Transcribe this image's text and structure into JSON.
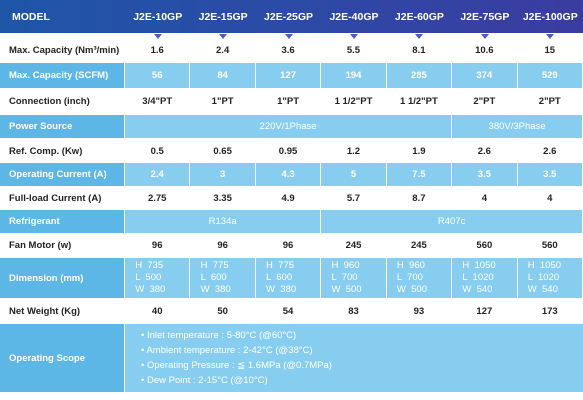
{
  "header": {
    "label": "MODEL",
    "models": [
      "J2E-10GP",
      "J2E-15GP",
      "J2E-25GP",
      "J2E-40GP",
      "J2E-60GP",
      "J2E-75GP",
      "J2E-100GP"
    ]
  },
  "rows": [
    {
      "label": "Max. Capacity (Nm³/min)",
      "values": [
        "1.6",
        "2.4",
        "3.6",
        "5.5",
        "8.1",
        "10.6",
        "15"
      ]
    },
    {
      "label": "Max. Capacity (SCFM)",
      "values": [
        "56",
        "84",
        "127",
        "194",
        "285",
        "374",
        "529"
      ]
    },
    {
      "label": "Connection (inch)",
      "values": [
        "3/4\"PT",
        "1\"PT",
        "1\"PT",
        "1 1/2\"PT",
        "1 1/2\"PT",
        "2\"PT",
        "2\"PT"
      ]
    },
    {
      "label": "Power Source",
      "values": [
        "220V/1Phase",
        "380V/3Phase"
      ]
    },
    {
      "label": "Ref. Comp. (Kw)",
      "values": [
        "0.5",
        "0.65",
        "0.95",
        "1.2",
        "1.9",
        "2.6",
        "2.6"
      ]
    },
    {
      "label": "Operating Current (A)",
      "values": [
        "2.4",
        "3",
        "4.3",
        "5",
        "7.5",
        "3.5",
        "3.5"
      ]
    },
    {
      "label": "Full-load Current (A)",
      "values": [
        "2.75",
        "3.35",
        "4.9",
        "5.7",
        "8.7",
        "4",
        "4"
      ]
    },
    {
      "label": "Refrigerant",
      "values": [
        "R134a",
        "R407c"
      ]
    },
    {
      "label": "Fan Motor (w)",
      "values": [
        "96",
        "96",
        "96",
        "245",
        "245",
        "560",
        "560"
      ]
    },
    {
      "label": "Dimension (mm)",
      "values": [
        [
          "H  735",
          "L  500",
          "W  380"
        ],
        [
          "H  775",
          "L  600",
          "W  380"
        ],
        [
          "H  775",
          "L  600",
          "W  380"
        ],
        [
          "H  960",
          "L  700",
          "W  500"
        ],
        [
          "H  960",
          "L  700",
          "W  500"
        ],
        [
          "H  1050",
          "L  1020",
          "W  540"
        ],
        [
          "H  1050",
          "L  1020",
          "W  540"
        ]
      ]
    },
    {
      "label": "Net Weight (Kg)",
      "values": [
        "40",
        "50",
        "54",
        "83",
        "93",
        "127",
        "173"
      ]
    },
    {
      "label": "Operating Scope",
      "values": [
        "• Inlet temperature : 5-80°C (@60°C)",
        "• Ambient temperature : 2-42°C (@38°C)",
        "• Operating Pressure : ≦ 1.6MPa (@0.7MPa)",
        "• Dew Point : 2-15°C (@10°C)"
      ]
    }
  ]
}
